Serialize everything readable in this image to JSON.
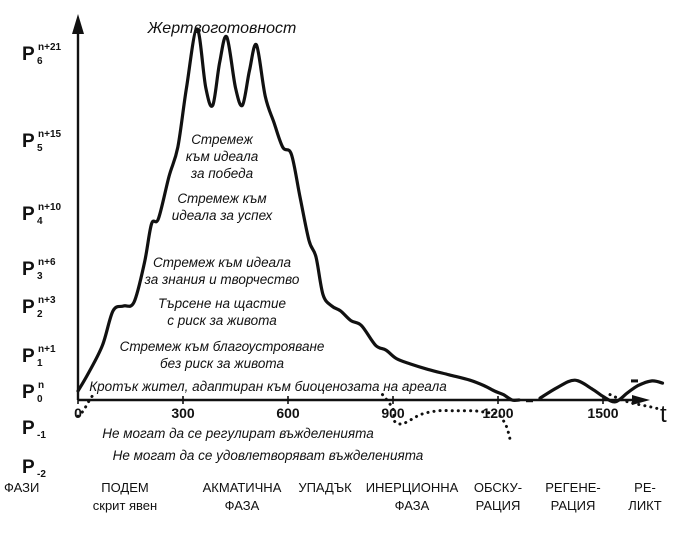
{
  "chart_data": {
    "type": "line",
    "title": "Жертвоготовност",
    "x_axis_label": "t",
    "x_ticks": [
      {
        "value": 0,
        "label": "0"
      },
      {
        "value": 300,
        "label": "300"
      },
      {
        "value": 600,
        "label": "600"
      },
      {
        "value": 900,
        "label": "900"
      },
      {
        "value": 1200,
        "label": "1200"
      },
      {
        "value": 1500,
        "label": "1500"
      }
    ],
    "y_levels": [
      {
        "base": "P",
        "sub": "6",
        "sup": "n+21"
      },
      {
        "base": "P",
        "sub": "5",
        "sup": "n+15"
      },
      {
        "base": "P",
        "sub": "4",
        "sup": "n+10"
      },
      {
        "base": "P",
        "sub": "3",
        "sup": "n+6"
      },
      {
        "base": "P",
        "sub": "2",
        "sup": "n+3"
      },
      {
        "base": "P",
        "sub": "1",
        "sup": "n+1"
      },
      {
        "base": "P",
        "sub": "0",
        "sup": "n"
      },
      {
        "base": "P",
        "sub": "-1",
        "sup": ""
      },
      {
        "base": "P",
        "sub": "-2",
        "sup": ""
      }
    ],
    "level_annotations": [
      [
        "Стремеж",
        "към идеала",
        "за победа"
      ],
      [
        "Стремеж към",
        "идеала за успех"
      ],
      [
        "Стремеж към идеала",
        "за знания и творчество"
      ],
      [
        "Търсене на щастие",
        "с риск за живота"
      ],
      [
        "Стремеж към благоустрояване",
        "без риск за живота"
      ],
      [
        "Кротък жител, адаптиран към биоценозата на ареала"
      ],
      [
        "Не могат да се регулират въжделенията"
      ],
      [
        "Не могат да се удовлетворяват въжделенията"
      ]
    ],
    "series": [
      {
        "style": "solid",
        "points": [
          [
            0,
            0
          ],
          [
            30,
            0.5
          ],
          [
            70,
            1.2
          ],
          [
            100,
            1.9
          ],
          [
            130,
            2.0
          ],
          [
            160,
            2.1
          ],
          [
            190,
            3.1
          ],
          [
            210,
            3.8
          ],
          [
            230,
            3.9
          ],
          [
            260,
            4.5
          ],
          [
            285,
            4.9
          ],
          [
            310,
            5.6
          ],
          [
            340,
            6.3
          ],
          [
            365,
            5.6
          ],
          [
            385,
            5.4
          ],
          [
            405,
            5.9
          ],
          [
            425,
            6.2
          ],
          [
            450,
            5.6
          ],
          [
            470,
            5.4
          ],
          [
            490,
            5.8
          ],
          [
            510,
            6.1
          ],
          [
            535,
            5.5
          ],
          [
            560,
            5.2
          ],
          [
            585,
            4.9
          ],
          [
            610,
            4.8
          ],
          [
            635,
            4.2
          ],
          [
            660,
            3.5
          ],
          [
            680,
            3.2
          ],
          [
            700,
            2.3
          ],
          [
            725,
            2.0
          ],
          [
            750,
            1.9
          ],
          [
            780,
            1.7
          ],
          [
            810,
            1.6
          ],
          [
            850,
            1.2
          ],
          [
            880,
            1.1
          ],
          [
            910,
            0.9
          ],
          [
            950,
            0.75
          ],
          [
            1000,
            0.6
          ],
          [
            1060,
            0.45
          ],
          [
            1120,
            0.3
          ],
          [
            1160,
            0.15
          ],
          [
            1190,
            0.0
          ],
          [
            1215,
            -0.1
          ],
          [
            1240,
            -0.25
          ],
          [
            1260,
            -0.25
          ]
        ]
      },
      {
        "style": "solid",
        "points": [
          [
            1320,
            -0.2
          ],
          [
            1370,
            0.1
          ],
          [
            1420,
            0.3
          ],
          [
            1470,
            0.05
          ],
          [
            1500,
            -0.15
          ],
          [
            1535,
            -0.3
          ],
          [
            1570,
            -0.05
          ],
          [
            1600,
            0.15
          ],
          [
            1640,
            0.28
          ],
          [
            1670,
            0.22
          ]
        ]
      },
      {
        "style": "dotted",
        "points": [
          [
            40,
            -0.15
          ],
          [
            30,
            -0.3
          ],
          [
            15,
            -0.55
          ],
          [
            0,
            -0.7
          ]
        ]
      },
      {
        "style": "dotted",
        "points": [
          [
            870,
            -0.1
          ],
          [
            900,
            -0.5
          ],
          [
            905,
            -0.85
          ],
          [
            930,
            -0.9
          ],
          [
            980,
            -0.65
          ],
          [
            1030,
            -0.55
          ],
          [
            1080,
            -0.55
          ],
          [
            1130,
            -0.55
          ],
          [
            1170,
            -0.6
          ],
          [
            1200,
            -0.65
          ],
          [
            1220,
            -0.9
          ],
          [
            1230,
            -1.15
          ],
          [
            1235,
            -1.35
          ]
        ]
      },
      {
        "style": "dotted",
        "points": [
          [
            1520,
            -0.1
          ],
          [
            1570,
            -0.3
          ],
          [
            1640,
            -0.45
          ],
          [
            1660,
            -0.5
          ]
        ]
      }
    ],
    "dashes": [
      {
        "from": [
          1280,
          -0.27
        ],
        "to": [
          1300,
          -0.27
        ]
      },
      {
        "from": [
          1580,
          0.28
        ],
        "to": [
          1600,
          0.28
        ]
      }
    ]
  },
  "phases": {
    "axis_label": "ФАЗИ",
    "items": [
      {
        "lines": [
          "ПОДЕМ",
          "скрит явен"
        ]
      },
      {
        "lines": [
          "АКМАТИЧНА",
          "ФАЗА"
        ]
      },
      {
        "lines": [
          "УПАДЪК"
        ]
      },
      {
        "lines": [
          "ИНЕРЦИОННА",
          "ФАЗА"
        ]
      },
      {
        "lines": [
          "ОБСКУ-",
          "РАЦИЯ"
        ]
      },
      {
        "lines": [
          "РЕГЕНЕ-",
          "РАЦИЯ"
        ]
      },
      {
        "lines": [
          "РЕ-",
          "ЛИКТ"
        ]
      }
    ]
  }
}
